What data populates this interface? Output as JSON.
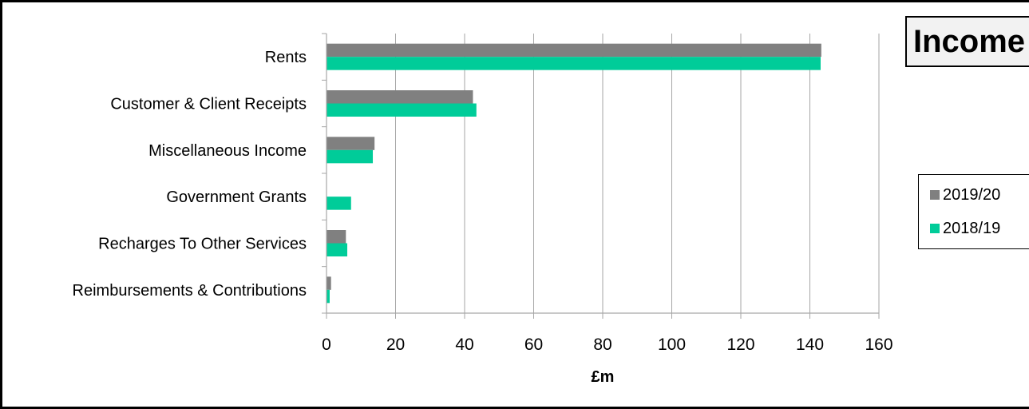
{
  "chart_data": {
    "type": "bar",
    "orientation": "horizontal",
    "title": "Income",
    "xlabel": "£m",
    "ylabel": "",
    "xlim": [
      0,
      160
    ],
    "x_ticks": [
      0,
      20,
      40,
      60,
      80,
      100,
      120,
      140,
      160
    ],
    "grid": true,
    "legend_position": "right",
    "categories": [
      "Rents",
      "Customer & Client Receipts",
      "Miscellaneous Income",
      "Government Grants",
      "Recharges To Other Services",
      "Reimbursements & Contributions"
    ],
    "series": [
      {
        "name": "2019/20",
        "color": "#808080",
        "values": [
          143.2,
          42.3,
          13.8,
          0,
          5.5,
          1.2
        ]
      },
      {
        "name": "2018/19",
        "color": "#00CC99",
        "values": [
          143.0,
          43.3,
          13.3,
          7.0,
          5.9,
          0.8
        ]
      }
    ]
  }
}
